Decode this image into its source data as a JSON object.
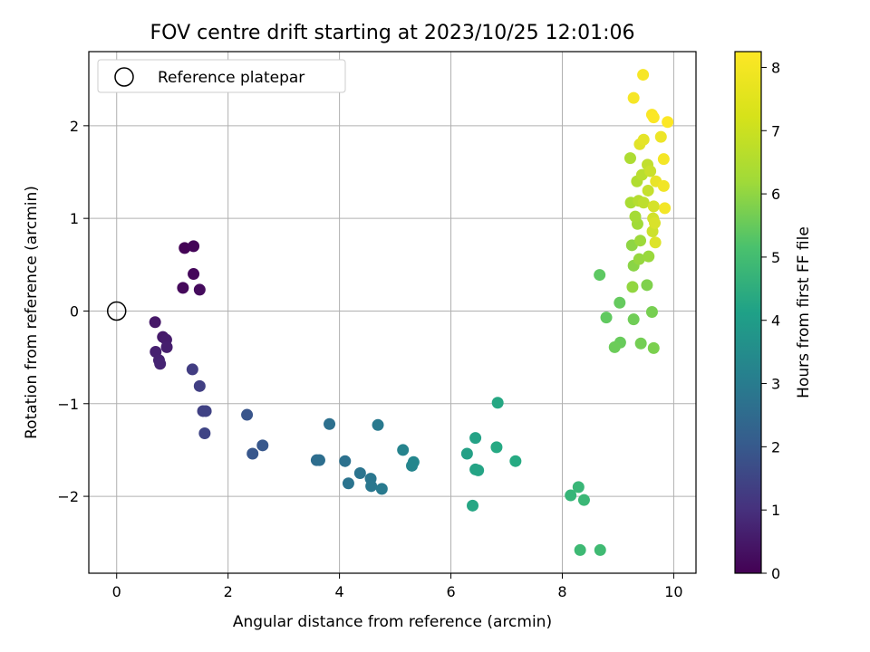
{
  "chart_data": {
    "type": "scatter",
    "title": "FOV centre drift starting at 2023/10/25 12:01:06",
    "xlabel": "Angular distance from reference (arcmin)",
    "ylabel": "Rotation from reference (arcmin)",
    "xlim": [
      -0.5,
      10.4
    ],
    "ylim": [
      -2.83,
      2.8
    ],
    "xticks": [
      "0",
      "2",
      "4",
      "6",
      "8",
      "10"
    ],
    "yticks": [
      "−2",
      "−1",
      "0",
      "1",
      "2"
    ],
    "grid": true,
    "legend": {
      "position": "top-left",
      "entries": [
        "Reference platepar"
      ]
    },
    "reference_point": {
      "x": 0,
      "y": 0,
      "label": "Reference platepar"
    },
    "colorbar": {
      "label": "Hours from first FF file",
      "colormap": "viridis",
      "range": [
        0,
        8.25
      ],
      "ticks": [
        "0",
        "1",
        "2",
        "3",
        "4",
        "5",
        "6",
        "7",
        "8"
      ]
    },
    "points": [
      {
        "x": 1.22,
        "y": 0.68,
        "c": 0.05
      },
      {
        "x": 1.38,
        "y": 0.7,
        "c": 0.1
      },
      {
        "x": 1.38,
        "y": 0.4,
        "c": 0.15
      },
      {
        "x": 1.19,
        "y": 0.25,
        "c": 0.2
      },
      {
        "x": 1.49,
        "y": 0.23,
        "c": 0.25
      },
      {
        "x": 0.69,
        "y": -0.12,
        "c": 0.55
      },
      {
        "x": 0.83,
        "y": -0.28,
        "c": 0.6
      },
      {
        "x": 0.89,
        "y": -0.31,
        "c": 0.65
      },
      {
        "x": 0.9,
        "y": -0.39,
        "c": 0.7
      },
      {
        "x": 0.7,
        "y": -0.44,
        "c": 0.75
      },
      {
        "x": 0.76,
        "y": -0.53,
        "c": 0.8
      },
      {
        "x": 0.78,
        "y": -0.57,
        "c": 0.85
      },
      {
        "x": 1.36,
        "y": -0.63,
        "c": 1.5
      },
      {
        "x": 1.49,
        "y": -0.81,
        "c": 1.55
      },
      {
        "x": 1.55,
        "y": -1.08,
        "c": 1.6
      },
      {
        "x": 1.6,
        "y": -1.08,
        "c": 1.65
      },
      {
        "x": 1.58,
        "y": -1.32,
        "c": 1.7
      },
      {
        "x": 2.34,
        "y": -1.12,
        "c": 2.2
      },
      {
        "x": 2.44,
        "y": -1.54,
        "c": 2.25
      },
      {
        "x": 2.62,
        "y": -1.45,
        "c": 2.3
      },
      {
        "x": 3.59,
        "y": -1.61,
        "c": 2.95
      },
      {
        "x": 3.64,
        "y": -1.61,
        "c": 3.0
      },
      {
        "x": 3.82,
        "y": -1.22,
        "c": 3.05
      },
      {
        "x": 4.1,
        "y": -1.62,
        "c": 3.1
      },
      {
        "x": 4.16,
        "y": -1.86,
        "c": 3.15
      },
      {
        "x": 4.37,
        "y": -1.75,
        "c": 3.2
      },
      {
        "x": 4.56,
        "y": -1.81,
        "c": 3.25
      },
      {
        "x": 4.57,
        "y": -1.89,
        "c": 3.3
      },
      {
        "x": 4.69,
        "y": -1.23,
        "c": 3.35
      },
      {
        "x": 4.76,
        "y": -1.92,
        "c": 3.4
      },
      {
        "x": 5.14,
        "y": -1.5,
        "c": 3.7
      },
      {
        "x": 5.3,
        "y": -1.67,
        "c": 3.75
      },
      {
        "x": 5.33,
        "y": -1.63,
        "c": 3.8
      },
      {
        "x": 6.29,
        "y": -1.54,
        "c": 4.7
      },
      {
        "x": 6.44,
        "y": -1.37,
        "c": 4.75
      },
      {
        "x": 6.44,
        "y": -1.71,
        "c": 4.8
      },
      {
        "x": 6.49,
        "y": -1.72,
        "c": 4.85
      },
      {
        "x": 6.39,
        "y": -2.1,
        "c": 4.9
      },
      {
        "x": 6.84,
        "y": -0.99,
        "c": 4.95
      },
      {
        "x": 6.82,
        "y": -1.47,
        "c": 5.0
      },
      {
        "x": 7.16,
        "y": -1.62,
        "c": 5.05
      },
      {
        "x": 8.15,
        "y": -1.99,
        "c": 5.45
      },
      {
        "x": 8.29,
        "y": -1.9,
        "c": 5.5
      },
      {
        "x": 8.39,
        "y": -2.04,
        "c": 5.55
      },
      {
        "x": 8.32,
        "y": -2.58,
        "c": 5.6
      },
      {
        "x": 8.68,
        "y": -2.58,
        "c": 5.65
      },
      {
        "x": 8.67,
        "y": 0.39,
        "c": 6.2
      },
      {
        "x": 8.79,
        "y": -0.07,
        "c": 6.25
      },
      {
        "x": 9.03,
        "y": 0.09,
        "c": 6.3
      },
      {
        "x": 9.04,
        "y": -0.34,
        "c": 6.35
      },
      {
        "x": 8.94,
        "y": -0.39,
        "c": 6.4
      },
      {
        "x": 9.28,
        "y": -0.09,
        "c": 6.45
      },
      {
        "x": 9.41,
        "y": -0.35,
        "c": 6.5
      },
      {
        "x": 9.61,
        "y": -0.01,
        "c": 6.55
      },
      {
        "x": 9.64,
        "y": -0.4,
        "c": 6.6
      },
      {
        "x": 9.52,
        "y": 0.28,
        "c": 6.65
      },
      {
        "x": 9.28,
        "y": 0.49,
        "c": 6.8
      },
      {
        "x": 9.25,
        "y": 0.71,
        "c": 6.85
      },
      {
        "x": 9.26,
        "y": 0.26,
        "c": 6.9
      },
      {
        "x": 9.38,
        "y": 0.56,
        "c": 6.95
      },
      {
        "x": 9.55,
        "y": 0.59,
        "c": 7.0
      },
      {
        "x": 9.4,
        "y": 0.76,
        "c": 7.05
      },
      {
        "x": 9.35,
        "y": 0.94,
        "c": 7.1
      },
      {
        "x": 9.31,
        "y": 1.02,
        "c": 7.15
      },
      {
        "x": 9.23,
        "y": 1.17,
        "c": 7.2
      },
      {
        "x": 9.22,
        "y": 1.65,
        "c": 7.25
      },
      {
        "x": 9.34,
        "y": 1.4,
        "c": 7.3
      },
      {
        "x": 9.37,
        "y": 1.19,
        "c": 7.35
      },
      {
        "x": 9.43,
        "y": 1.47,
        "c": 7.4
      },
      {
        "x": 9.46,
        "y": 1.17,
        "c": 7.45
      },
      {
        "x": 9.53,
        "y": 1.58,
        "c": 7.5
      },
      {
        "x": 9.54,
        "y": 1.3,
        "c": 7.55
      },
      {
        "x": 9.58,
        "y": 1.51,
        "c": 7.6
      },
      {
        "x": 9.62,
        "y": 0.86,
        "c": 7.65
      },
      {
        "x": 9.63,
        "y": 1.0,
        "c": 7.7
      },
      {
        "x": 9.64,
        "y": 1.13,
        "c": 7.75
      },
      {
        "x": 9.66,
        "y": 0.95,
        "c": 7.8
      },
      {
        "x": 9.67,
        "y": 0.74,
        "c": 7.85
      },
      {
        "x": 9.39,
        "y": 1.8,
        "c": 7.9
      },
      {
        "x": 9.46,
        "y": 1.85,
        "c": 7.95
      },
      {
        "x": 9.68,
        "y": 1.4,
        "c": 8.0
      },
      {
        "x": 9.77,
        "y": 1.88,
        "c": 8.05
      },
      {
        "x": 9.82,
        "y": 1.35,
        "c": 8.1
      },
      {
        "x": 9.84,
        "y": 1.11,
        "c": 8.12
      },
      {
        "x": 9.82,
        "y": 1.64,
        "c": 8.14
      },
      {
        "x": 9.28,
        "y": 2.3,
        "c": 8.16
      },
      {
        "x": 9.45,
        "y": 2.55,
        "c": 8.18
      },
      {
        "x": 9.61,
        "y": 2.12,
        "c": 8.2
      },
      {
        "x": 9.64,
        "y": 2.09,
        "c": 8.22
      },
      {
        "x": 9.89,
        "y": 2.04,
        "c": 8.24
      }
    ]
  }
}
